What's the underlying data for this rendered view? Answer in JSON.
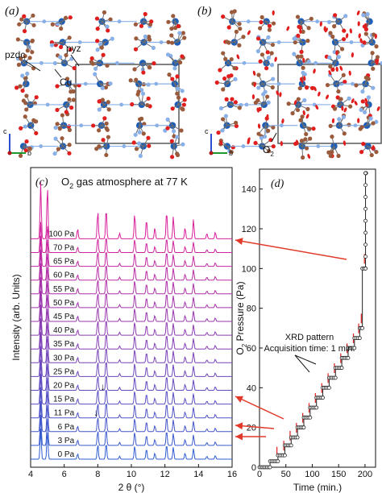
{
  "panel_a": {
    "letter": "(a)",
    "annotations": [
      "pyz",
      "pzdc",
      "Cu"
    ],
    "axes": {
      "c": "c",
      "b": "b"
    }
  },
  "panel_b": {
    "letter": "(b)",
    "annotations": [
      "O",
      "2"
    ],
    "axes": {
      "c": "c",
      "b": "b"
    }
  },
  "colors": {
    "carbon": "#9a5a3c",
    "oxygen": "#e11e1e",
    "nitrogen": "#8ab0e8",
    "copper": "#1f5fb8",
    "cell": "#4d4d4d",
    "trace_low": "#2f5dd0",
    "trace_high": "#d7209a",
    "arrow": "#e23a2a",
    "pressure_curve": "#222222",
    "xrd_marks": "#e22c2c"
  },
  "chart_data": [
    {
      "type": "line",
      "panel": "(c)",
      "title_pre": "O",
      "title_sub": "2",
      "title_post": " gas atmosphere at 77 K",
      "xlabel": "2 θ (°)",
      "ylabel": "Intensity (arb. Units)",
      "xlim": [
        4,
        16
      ],
      "x_ticks": [
        "4",
        "6",
        "8",
        "10",
        "12",
        "14",
        "16"
      ],
      "series_labels": [
        "0 Pa",
        "3 Pa",
        "6 Pa",
        "11 Pa",
        "15 Pa",
        "20 Pa",
        "25 Pa",
        "30 Pa",
        "35 Pa",
        "40 Pa",
        "45 Pa",
        "50 Pa",
        "55 Pa",
        "60 Pa",
        "65 Pa",
        "70 Pa",
        "100 Pa"
      ],
      "peak_positions": [
        4.6,
        5.0,
        6.8,
        8.0,
        8.5,
        9.3,
        10.2,
        10.9,
        11.4,
        12.1,
        12.5,
        13.2,
        13.7,
        14.5,
        15.0
      ],
      "peak_heights": [
        1.0,
        0.95,
        0.18,
        0.5,
        0.55,
        0.1,
        0.45,
        0.35,
        0.2,
        0.5,
        0.4,
        0.2,
        0.35,
        0.1,
        0.12
      ],
      "markers": [
        "↓",
        "↓"
      ]
    },
    {
      "type": "scatter",
      "panel": "(d)",
      "xlabel": "Time (min.)",
      "ylabel_pre": "O",
      "ylabel_sub": "2",
      "ylabel_post": " Pressure (Pa)",
      "xlim": [
        0,
        220
      ],
      "ylim": [
        0,
        150
      ],
      "x_ticks": [
        "0",
        "50",
        "100",
        "150",
        "200"
      ],
      "y_ticks": [
        "0",
        "20",
        "40",
        "60",
        "80",
        "100",
        "120",
        "140"
      ],
      "annotation_line1": "XRD pattern",
      "annotation_line2": "Acquisition time: 1 min.",
      "steps": [
        {
          "t0": 0,
          "t1": 20,
          "p": 0
        },
        {
          "t0": 20,
          "t1": 35,
          "p": 3
        },
        {
          "t0": 35,
          "t1": 48,
          "p": 6
        },
        {
          "t0": 48,
          "t1": 60,
          "p": 11
        },
        {
          "t0": 60,
          "t1": 72,
          "p": 15
        },
        {
          "t0": 72,
          "t1": 84,
          "p": 20
        },
        {
          "t0": 84,
          "t1": 96,
          "p": 25
        },
        {
          "t0": 96,
          "t1": 108,
          "p": 30
        },
        {
          "t0": 108,
          "t1": 120,
          "p": 35
        },
        {
          "t0": 120,
          "t1": 132,
          "p": 40
        },
        {
          "t0": 132,
          "t1": 144,
          "p": 45
        },
        {
          "t0": 144,
          "t1": 156,
          "p": 50
        },
        {
          "t0": 156,
          "t1": 168,
          "p": 55
        },
        {
          "t0": 168,
          "t1": 180,
          "p": 60
        },
        {
          "t0": 180,
          "t1": 190,
          "p": 65
        },
        {
          "t0": 190,
          "t1": 195,
          "p": 70
        },
        {
          "t0": 195,
          "t1": 201,
          "p": 100
        },
        {
          "t0": 201,
          "t1": 202,
          "p": 148
        }
      ]
    }
  ]
}
